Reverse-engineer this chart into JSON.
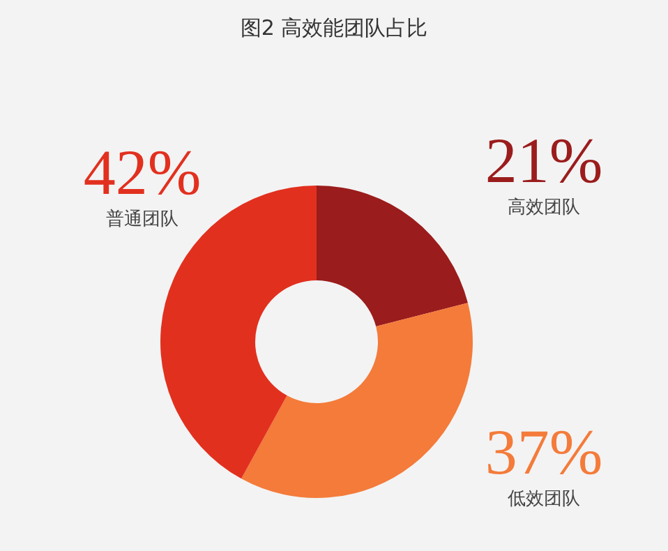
{
  "chart_data": {
    "type": "donut",
    "title": "图2  高效能团队占比",
    "categories": [
      "高效团队",
      "低效团队",
      "普通团队"
    ],
    "values": [
      21,
      37,
      42
    ],
    "colors": [
      "#9b1c1c",
      "#f47b3a",
      "#e2301f"
    ],
    "value_labels": [
      "21%",
      "37%",
      "42%"
    ]
  }
}
